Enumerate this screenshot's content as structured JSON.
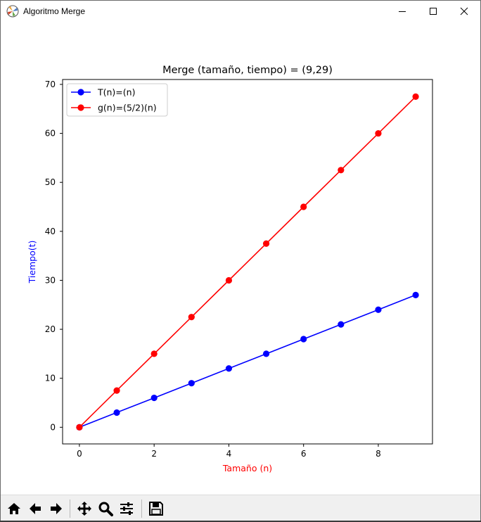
{
  "window": {
    "title": "Algoritmo Merge",
    "icon": "matplotlib-app-icon",
    "controls": [
      "minimize-icon",
      "maximize-icon",
      "close-icon"
    ]
  },
  "colors": {
    "series_blue": "#0000ff",
    "series_red": "#ff0000",
    "xlabel": "#ff0000",
    "ylabel": "#0000ff",
    "toolbar_bg": "#f0f0f0"
  },
  "chart_data": {
    "type": "line",
    "title": "Merge (tamaño, tiempo) = (9,29)",
    "xlabel": "Tamaño (n)",
    "ylabel": "Tiempo(t)",
    "xlim": [
      -0.45,
      9.45
    ],
    "ylim": [
      -3.4,
      71
    ],
    "xticks": [
      0,
      2,
      4,
      6,
      8
    ],
    "yticks": [
      0,
      10,
      20,
      30,
      40,
      50,
      60,
      70
    ],
    "grid": false,
    "legend": "upper-left",
    "x": [
      0,
      1,
      2,
      3,
      4,
      5,
      6,
      7,
      8,
      9
    ],
    "series": [
      {
        "name": "T(n)=(n)",
        "color": "#0000ff",
        "values": [
          0,
          3,
          6,
          9,
          12,
          15,
          18,
          21,
          24,
          27
        ]
      },
      {
        "name": "g(n)=(5/2)(n)",
        "color": "#ff0000",
        "values": [
          0,
          7.5,
          15,
          22.5,
          30,
          37.5,
          45,
          52.5,
          60,
          67.5
        ]
      }
    ]
  },
  "toolbar": {
    "tools": [
      "home-icon",
      "back-arrow-icon",
      "forward-arrow-icon",
      "pan-icon",
      "zoom-icon",
      "configure-subplots-icon",
      "save-icon"
    ]
  }
}
